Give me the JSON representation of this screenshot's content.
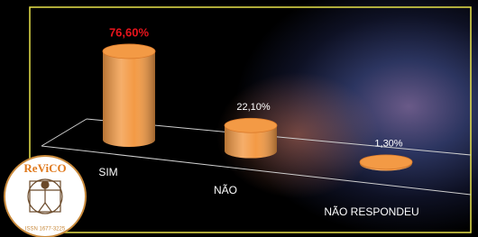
{
  "chart_data": {
    "type": "cylinder-bar",
    "categories": [
      "SIM",
      "NÃO",
      "NÃO RESPONDEU"
    ],
    "values": [
      76.6,
      22.1,
      1.3
    ],
    "value_labels": [
      "76,60%",
      "22,10%",
      "1,30%"
    ],
    "color": "#f39a45"
  },
  "logo": {
    "title": "ReViCO",
    "issn": "ISSN 1677-3225"
  }
}
